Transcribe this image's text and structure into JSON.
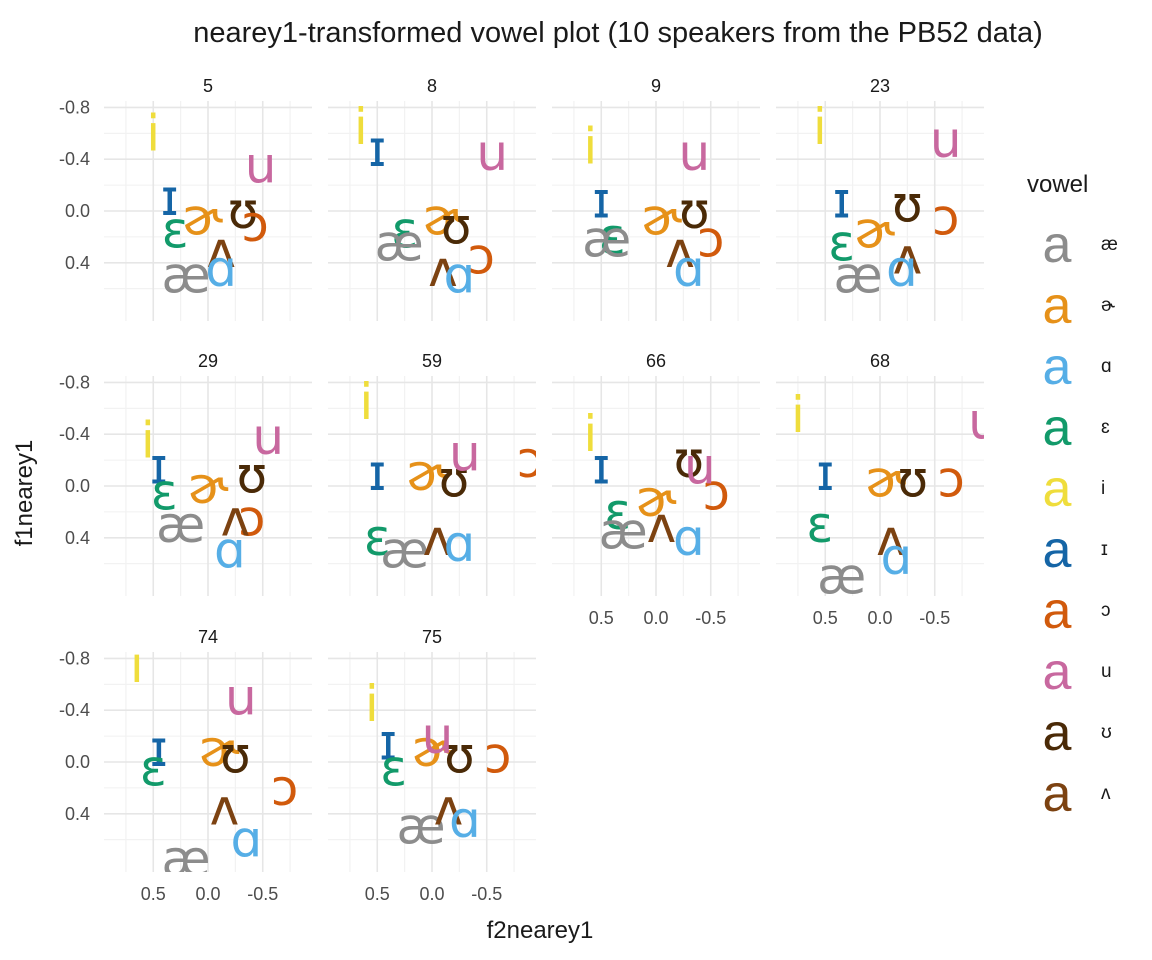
{
  "chart_data": {
    "type": "scatter",
    "title": "nearey1-transformed vowel plot (10 speakers from the PB52 data)",
    "xlabel": "f2nearey1",
    "ylabel": "f1nearey1",
    "x_reversed": true,
    "y_reversed": true,
    "xlim": [
      0.95,
      -0.95
    ],
    "ylim": [
      -0.85,
      0.85
    ],
    "x_ticks": [
      0.5,
      0.0,
      -0.5
    ],
    "x_tick_labels": [
      "0.5",
      "0.0",
      "-0.5"
    ],
    "y_ticks": [
      -0.8,
      -0.4,
      0.0,
      0.4
    ],
    "y_tick_labels": [
      "-0.8",
      "-0.4",
      "0.0",
      "0.4"
    ],
    "grid": true,
    "facet_layout": "wrap 4 columns",
    "legend": {
      "title": "vowel",
      "position": "right",
      "key_glyph": "a",
      "items": [
        {
          "vowel": "æ",
          "color": "#8c8c8c"
        },
        {
          "vowel": "ɚ",
          "color": "#e69119"
        },
        {
          "vowel": "ɑ",
          "color": "#56aee6"
        },
        {
          "vowel": "ɛ",
          "color": "#129a6a"
        },
        {
          "vowel": "i",
          "color": "#efdd3c"
        },
        {
          "vowel": "ɪ",
          "color": "#1565a6"
        },
        {
          "vowel": "ɔ",
          "color": "#d15a0c"
        },
        {
          "vowel": "u",
          "color": "#c8689f"
        },
        {
          "vowel": "ʊ",
          "color": "#4a2a07"
        },
        {
          "vowel": "ʌ",
          "color": "#7c4211"
        }
      ]
    },
    "facets": [
      {
        "label": "5",
        "points": [
          {
            "vowel": "i",
            "x": 0.5,
            "y": -0.6
          },
          {
            "vowel": "ɪ",
            "x": 0.35,
            "y": -0.1
          },
          {
            "vowel": "ɛ",
            "x": 0.3,
            "y": 0.15
          },
          {
            "vowel": "æ",
            "x": 0.2,
            "y": 0.5
          },
          {
            "vowel": "ɚ",
            "x": 0.05,
            "y": 0.05
          },
          {
            "vowel": "ʊ",
            "x": -0.32,
            "y": 0.0
          },
          {
            "vowel": "ɔ",
            "x": -0.43,
            "y": 0.1
          },
          {
            "vowel": "ʌ",
            "x": -0.12,
            "y": 0.3
          },
          {
            "vowel": "ɑ",
            "x": -0.12,
            "y": 0.45
          },
          {
            "vowel": "u",
            "x": -0.48,
            "y": -0.35
          }
        ]
      },
      {
        "label": "8",
        "points": [
          {
            "vowel": "i",
            "x": 0.65,
            "y": -0.65
          },
          {
            "vowel": "ɪ",
            "x": 0.5,
            "y": -0.48
          },
          {
            "vowel": "ɛ",
            "x": 0.25,
            "y": 0.15
          },
          {
            "vowel": "æ",
            "x": 0.3,
            "y": 0.25
          },
          {
            "vowel": "ɚ",
            "x": -0.1,
            "y": 0.05
          },
          {
            "vowel": "ʊ",
            "x": -0.22,
            "y": 0.12
          },
          {
            "vowel": "ɔ",
            "x": -0.45,
            "y": 0.35
          },
          {
            "vowel": "ʌ",
            "x": -0.1,
            "y": 0.45
          },
          {
            "vowel": "ɑ",
            "x": -0.25,
            "y": 0.5
          },
          {
            "vowel": "u",
            "x": -0.55,
            "y": -0.45
          }
        ]
      },
      {
        "label": "9",
        "points": [
          {
            "vowel": "i",
            "x": 0.6,
            "y": -0.5
          },
          {
            "vowel": "ɪ",
            "x": 0.5,
            "y": -0.08
          },
          {
            "vowel": "ɛ",
            "x": 0.4,
            "y": 0.2
          },
          {
            "vowel": "æ",
            "x": 0.45,
            "y": 0.22
          },
          {
            "vowel": "ɚ",
            "x": -0.05,
            "y": 0.05
          },
          {
            "vowel": "ʊ",
            "x": -0.35,
            "y": 0.0
          },
          {
            "vowel": "ɔ",
            "x": -0.5,
            "y": 0.22
          },
          {
            "vowel": "ʌ",
            "x": -0.22,
            "y": 0.3
          },
          {
            "vowel": "ɑ",
            "x": -0.3,
            "y": 0.45
          },
          {
            "vowel": "u",
            "x": -0.35,
            "y": -0.45
          }
        ]
      },
      {
        "label": "23",
        "points": [
          {
            "vowel": "i",
            "x": 0.55,
            "y": -0.65
          },
          {
            "vowel": "ɪ",
            "x": 0.35,
            "y": -0.08
          },
          {
            "vowel": "ɛ",
            "x": 0.35,
            "y": 0.25
          },
          {
            "vowel": "æ",
            "x": 0.2,
            "y": 0.5
          },
          {
            "vowel": "ɚ",
            "x": 0.05,
            "y": 0.15
          },
          {
            "vowel": "ʊ",
            "x": -0.25,
            "y": -0.05
          },
          {
            "vowel": "ɔ",
            "x": -0.6,
            "y": 0.05
          },
          {
            "vowel": "ʌ",
            "x": -0.25,
            "y": 0.35
          },
          {
            "vowel": "ɑ",
            "x": -0.2,
            "y": 0.45
          },
          {
            "vowel": "u",
            "x": -0.6,
            "y": -0.55
          }
        ]
      },
      {
        "label": "29",
        "points": [
          {
            "vowel": "i",
            "x": 0.55,
            "y": -0.35
          },
          {
            "vowel": "ɪ",
            "x": 0.45,
            "y": -0.15
          },
          {
            "vowel": "ɛ",
            "x": 0.4,
            "y": 0.05
          },
          {
            "vowel": "æ",
            "x": 0.25,
            "y": 0.3
          },
          {
            "vowel": "ɚ",
            "x": 0.0,
            "y": 0.0
          },
          {
            "vowel": "ʊ",
            "x": -0.4,
            "y": -0.08
          },
          {
            "vowel": "ɔ",
            "x": -0.4,
            "y": 0.25
          },
          {
            "vowel": "ʌ",
            "x": -0.25,
            "y": 0.25
          },
          {
            "vowel": "ɑ",
            "x": -0.2,
            "y": 0.5
          },
          {
            "vowel": "u",
            "x": -0.55,
            "y": -0.38
          }
        ]
      },
      {
        "label": "59",
        "points": [
          {
            "vowel": "i",
            "x": 0.6,
            "y": -0.65
          },
          {
            "vowel": "ɪ",
            "x": 0.5,
            "y": -0.1
          },
          {
            "vowel": "ɛ",
            "x": 0.5,
            "y": 0.4
          },
          {
            "vowel": "æ",
            "x": 0.25,
            "y": 0.5
          },
          {
            "vowel": "ɚ",
            "x": 0.05,
            "y": -0.1
          },
          {
            "vowel": "ʊ",
            "x": -0.2,
            "y": -0.05
          },
          {
            "vowel": "ɔ",
            "x": -0.9,
            "y": -0.2
          },
          {
            "vowel": "ʌ",
            "x": -0.05,
            "y": 0.4
          },
          {
            "vowel": "ɑ",
            "x": -0.25,
            "y": 0.45
          },
          {
            "vowel": "u",
            "x": -0.3,
            "y": -0.25
          }
        ]
      },
      {
        "label": "66",
        "points": [
          {
            "vowel": "i",
            "x": 0.6,
            "y": -0.4
          },
          {
            "vowel": "ɪ",
            "x": 0.5,
            "y": -0.15
          },
          {
            "vowel": "ɛ",
            "x": 0.35,
            "y": 0.2
          },
          {
            "vowel": "æ",
            "x": 0.3,
            "y": 0.35
          },
          {
            "vowel": "ɚ",
            "x": 0.0,
            "y": 0.1
          },
          {
            "vowel": "ʊ",
            "x": -0.3,
            "y": -0.2
          },
          {
            "vowel": "ɔ",
            "x": -0.55,
            "y": 0.05
          },
          {
            "vowel": "ʌ",
            "x": -0.05,
            "y": 0.3
          },
          {
            "vowel": "ɑ",
            "x": -0.3,
            "y": 0.4
          },
          {
            "vowel": "u",
            "x": -0.4,
            "y": -0.15
          }
        ]
      },
      {
        "label": "68",
        "points": [
          {
            "vowel": "i",
            "x": 0.75,
            "y": -0.55
          },
          {
            "vowel": "ɪ",
            "x": 0.5,
            "y": -0.1
          },
          {
            "vowel": "ɛ",
            "x": 0.55,
            "y": 0.3
          },
          {
            "vowel": "æ",
            "x": 0.35,
            "y": 0.7
          },
          {
            "vowel": "ɚ",
            "x": -0.05,
            "y": -0.05
          },
          {
            "vowel": "ʊ",
            "x": -0.3,
            "y": -0.05
          },
          {
            "vowel": "ɔ",
            "x": -0.65,
            "y": -0.05
          },
          {
            "vowel": "ʌ",
            "x": -0.1,
            "y": 0.4
          },
          {
            "vowel": "ɑ",
            "x": -0.15,
            "y": 0.55
          },
          {
            "vowel": "u",
            "x": -0.95,
            "y": -0.5
          }
        ]
      },
      {
        "label": "74",
        "points": [
          {
            "vowel": "i",
            "x": 0.65,
            "y": -0.75
          },
          {
            "vowel": "ɪ",
            "x": 0.45,
            "y": -0.1
          },
          {
            "vowel": "ɛ",
            "x": 0.5,
            "y": 0.05
          },
          {
            "vowel": "æ",
            "x": 0.2,
            "y": 0.75
          },
          {
            "vowel": "ɚ",
            "x": -0.1,
            "y": -0.1
          },
          {
            "vowel": "ʊ",
            "x": -0.25,
            "y": -0.05
          },
          {
            "vowel": "ɔ",
            "x": -0.7,
            "y": 0.2
          },
          {
            "vowel": "ʌ",
            "x": -0.15,
            "y": 0.35
          },
          {
            "vowel": "ɑ",
            "x": -0.35,
            "y": 0.6
          },
          {
            "vowel": "u",
            "x": -0.3,
            "y": -0.5
          }
        ]
      },
      {
        "label": "75",
        "points": [
          {
            "vowel": "i",
            "x": 0.55,
            "y": -0.45
          },
          {
            "vowel": "ɪ",
            "x": 0.4,
            "y": -0.15
          },
          {
            "vowel": "ɛ",
            "x": 0.35,
            "y": 0.05
          },
          {
            "vowel": "æ",
            "x": 0.1,
            "y": 0.5
          },
          {
            "vowel": "ɚ",
            "x": 0.0,
            "y": -0.1
          },
          {
            "vowel": "ʊ",
            "x": -0.25,
            "y": -0.05
          },
          {
            "vowel": "ɔ",
            "x": -0.6,
            "y": -0.05
          },
          {
            "vowel": "ʌ",
            "x": -0.15,
            "y": 0.35
          },
          {
            "vowel": "ɑ",
            "x": -0.3,
            "y": 0.45
          },
          {
            "vowel": "u",
            "x": -0.05,
            "y": -0.2
          }
        ]
      }
    ]
  }
}
